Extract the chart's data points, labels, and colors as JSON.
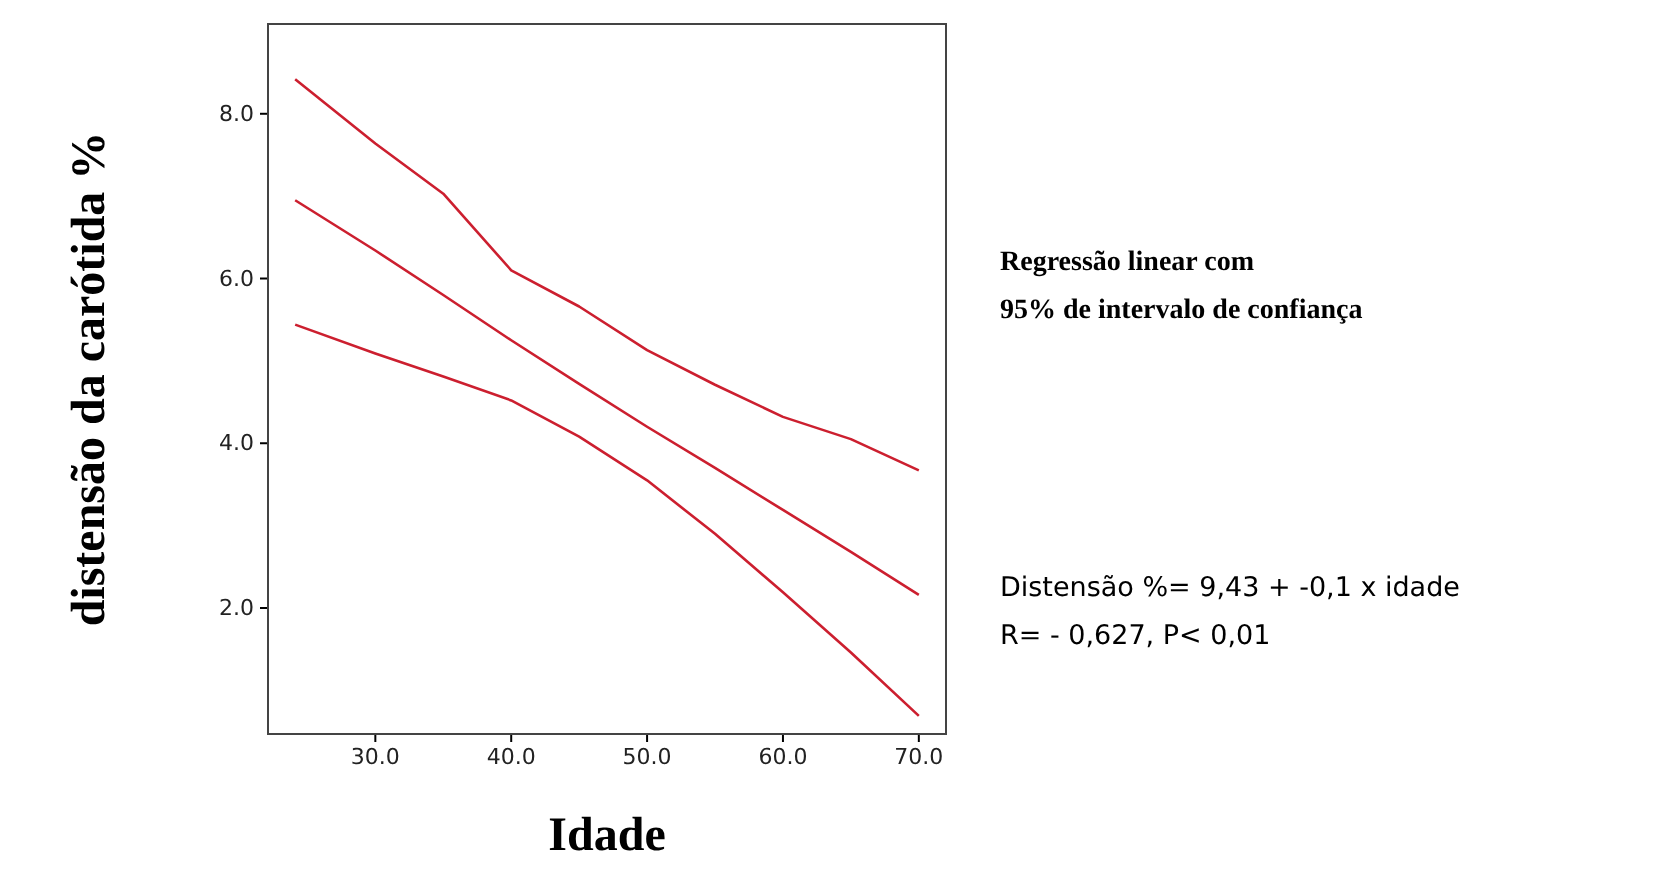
{
  "chart_data": {
    "type": "line",
    "xlabel": "Idade",
    "ylabel": "distensão da carótida %",
    "xlim": [
      22.1,
      72
    ],
    "ylim": [
      0.47,
      9.09
    ],
    "xticks": [
      {
        "value": 30,
        "label": "30.0"
      },
      {
        "value": 40,
        "label": "40.0"
      },
      {
        "value": 50,
        "label": "50.0"
      },
      {
        "value": 60,
        "label": "60.0"
      },
      {
        "value": 70,
        "label": "70.0"
      }
    ],
    "yticks": [
      {
        "value": 2,
        "label": "2.0"
      },
      {
        "value": 4,
        "label": "4.0"
      },
      {
        "value": 6,
        "label": "6.0"
      },
      {
        "value": 8,
        "label": "8.0"
      }
    ],
    "grid": false,
    "marker": "none",
    "line_style": "solid",
    "x": [
      24.1,
      30,
      35,
      40,
      45,
      50,
      55,
      60,
      65,
      70
    ],
    "series": [
      {
        "color": "#cc1f2f",
        "values": [
          8.42,
          7.64,
          7.03,
          6.1,
          5.66,
          5.13,
          4.71,
          4.32,
          4.05,
          3.67
        ]
      },
      {
        "color": "#cc1f2f",
        "values": [
          6.95,
          6.34,
          5.8,
          5.25,
          4.72,
          4.2,
          3.7,
          3.19,
          2.68,
          2.16
        ]
      },
      {
        "color": "#cc1f2f",
        "values": [
          5.44,
          5.09,
          4.81,
          4.52,
          4.08,
          3.55,
          2.9,
          2.19,
          1.46,
          0.69
        ]
      }
    ],
    "annotations": [
      "Regressão linear com\n95% de intervalo de confiança",
      "Distensão %= 9,43 + -0,1 x idade\nR= - 0,627, P< 0,01"
    ]
  }
}
